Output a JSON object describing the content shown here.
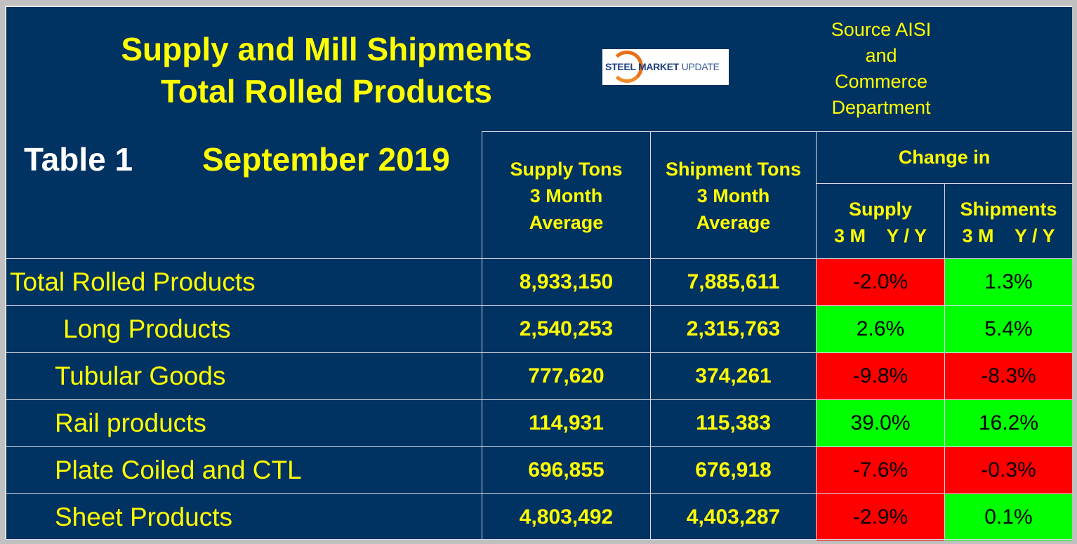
{
  "title_line1": "Supply and Mill Shipments",
  "title_line2": "Total Rolled Products",
  "logo_text_bold": "STEEL MARKET",
  "logo_text_light": "UPDATE",
  "source": [
    "Source AISI",
    "and",
    "Commerce",
    "Department"
  ],
  "table_label": "Table 1",
  "period": "September 2019",
  "headers": {
    "supply": [
      "Supply Tons",
      "3 Month",
      "Average"
    ],
    "shipment": [
      "Shipment Tons",
      "3 Month",
      "Average"
    ],
    "change_in": "Change in",
    "supply_change": [
      "Supply",
      "3 M    Y / Y"
    ],
    "shipments_change": [
      "Shipments",
      "3 M    Y / Y"
    ]
  },
  "colors": {
    "background": "#003262",
    "positive": "#00ff00",
    "negative": "#ff0000",
    "text": "#ffff00"
  },
  "rows": [
    {
      "label": "Total Rolled Products",
      "supply": "8,933,150",
      "shipment": "7,885,611",
      "supply_change": "-2.0%",
      "shipment_change": "1.3%"
    },
    {
      "label": "Long Products",
      "supply": "2,540,253",
      "shipment": "2,315,763",
      "supply_change": "2.6%",
      "shipment_change": "5.4%"
    },
    {
      "label": "Tubular Goods",
      "supply": "777,620",
      "shipment": "374,261",
      "supply_change": "-9.8%",
      "shipment_change": "-8.3%"
    },
    {
      "label": "Rail products",
      "supply": "114,931",
      "shipment": "115,383",
      "supply_change": "39.0%",
      "shipment_change": "16.2%"
    },
    {
      "label": "Plate Coiled and CTL",
      "supply": "696,855",
      "shipment": "676,918",
      "supply_change": "-7.6%",
      "shipment_change": "-0.3%"
    },
    {
      "label": "Sheet Products",
      "supply": "4,803,492",
      "shipment": "4,403,287",
      "supply_change": "-2.9%",
      "shipment_change": "0.1%"
    }
  ]
}
